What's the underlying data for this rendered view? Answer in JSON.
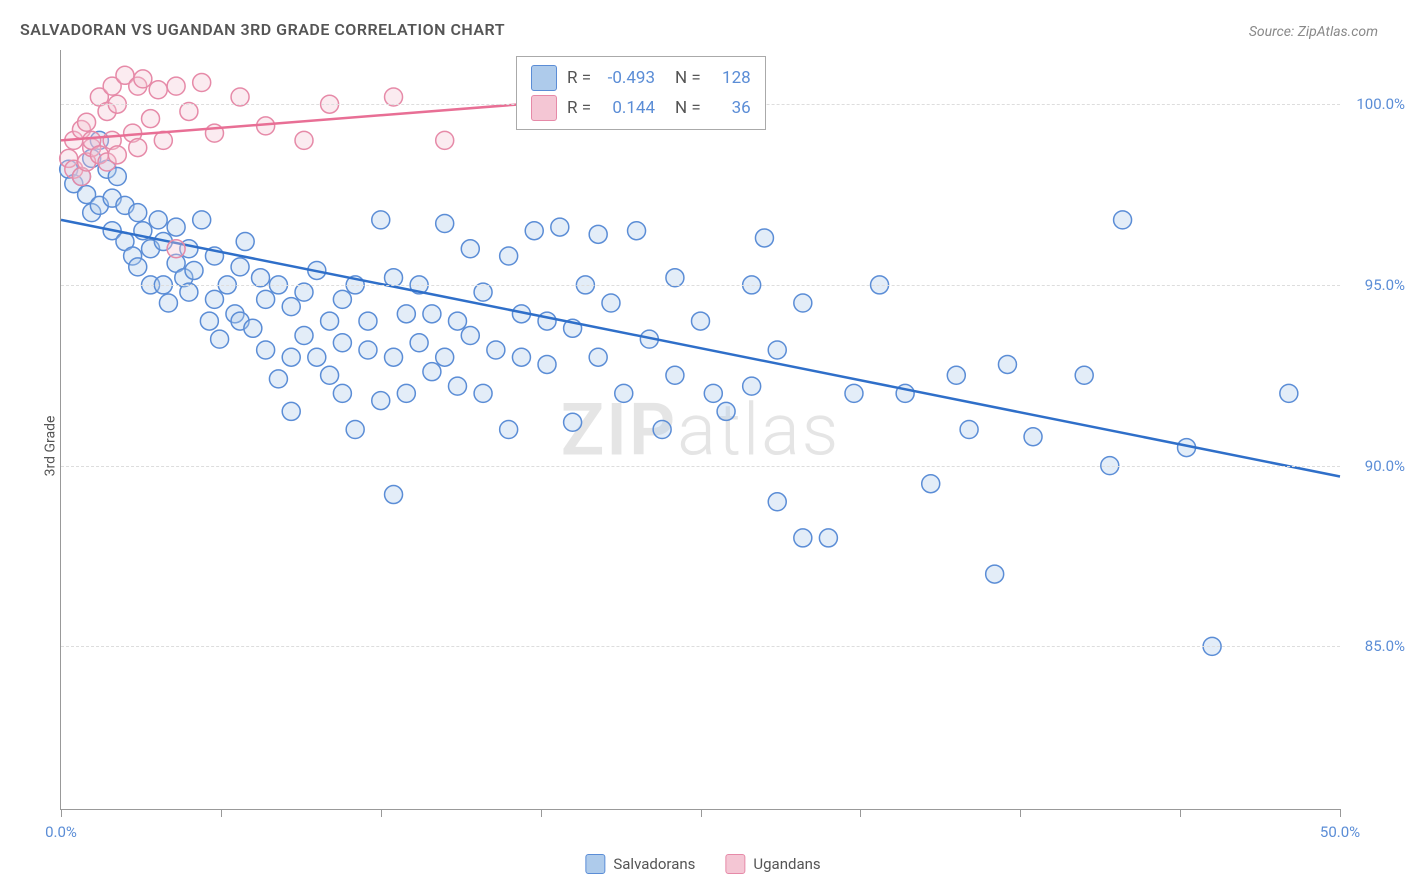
{
  "title": "SALVADORAN VS UGANDAN 3RD GRADE CORRELATION CHART",
  "source": "Source: ZipAtlas.com",
  "y_axis_label": "3rd Grade",
  "watermark": {
    "left": "ZIP",
    "right": "atlas"
  },
  "chart": {
    "type": "scatter",
    "xlim": [
      0,
      50
    ],
    "ylim": [
      80.5,
      101.5
    ],
    "x_tick_positions": [
      0,
      6.25,
      12.5,
      18.75,
      25,
      31.25,
      37.5,
      43.75,
      50
    ],
    "x_tick_labels": {
      "0": "0.0%",
      "50": "50.0%"
    },
    "y_gridlines": [
      85,
      90,
      95,
      100
    ],
    "y_tick_labels": {
      "85": "85.0%",
      "90": "90.0%",
      "95": "95.0%",
      "100": "100.0%"
    },
    "background_color": "#ffffff",
    "grid_color": "#dddddd",
    "axis_color": "#999999",
    "label_color": "#5b8dd6",
    "marker_radius": 9,
    "marker_fill_opacity": 0.35,
    "marker_stroke_width": 1.5,
    "trend_line_width": 2.5,
    "series": [
      {
        "name": "Salvadorans",
        "color_fill": "#aecbeb",
        "color_stroke": "#5b8dd6",
        "trend_color": "#2f6fc9",
        "R": "-0.493",
        "N": "128",
        "trend_line": {
          "x1": 0,
          "y1": 96.8,
          "x2": 50,
          "y2": 89.7
        },
        "points": [
          [
            0.3,
            98.2
          ],
          [
            0.5,
            97.8
          ],
          [
            0.8,
            98.0
          ],
          [
            1.0,
            97.5
          ],
          [
            1.2,
            97.0
          ],
          [
            1.2,
            98.5
          ],
          [
            1.5,
            99.0
          ],
          [
            1.5,
            97.2
          ],
          [
            1.8,
            98.2
          ],
          [
            2.0,
            97.4
          ],
          [
            2.0,
            96.5
          ],
          [
            2.2,
            98.0
          ],
          [
            2.5,
            96.2
          ],
          [
            2.5,
            97.2
          ],
          [
            2.8,
            95.8
          ],
          [
            3.0,
            97.0
          ],
          [
            3.0,
            95.5
          ],
          [
            3.2,
            96.5
          ],
          [
            3.5,
            96.0
          ],
          [
            3.5,
            95.0
          ],
          [
            3.8,
            96.8
          ],
          [
            4.0,
            95.0
          ],
          [
            4.0,
            96.2
          ],
          [
            4.2,
            94.5
          ],
          [
            4.5,
            96.6
          ],
          [
            4.5,
            95.6
          ],
          [
            4.8,
            95.2
          ],
          [
            5.0,
            94.8
          ],
          [
            5.0,
            96.0
          ],
          [
            5.2,
            95.4
          ],
          [
            5.5,
            96.8
          ],
          [
            5.8,
            94.0
          ],
          [
            6.0,
            95.8
          ],
          [
            6.0,
            94.6
          ],
          [
            6.2,
            93.5
          ],
          [
            6.5,
            95.0
          ],
          [
            6.8,
            94.2
          ],
          [
            7.0,
            95.5
          ],
          [
            7.0,
            94.0
          ],
          [
            7.2,
            96.2
          ],
          [
            7.5,
            93.8
          ],
          [
            7.8,
            95.2
          ],
          [
            8.0,
            94.6
          ],
          [
            8.0,
            93.2
          ],
          [
            8.5,
            95.0
          ],
          [
            8.5,
            92.4
          ],
          [
            9.0,
            94.4
          ],
          [
            9.0,
            93.0
          ],
          [
            9.0,
            91.5
          ],
          [
            9.5,
            94.8
          ],
          [
            9.5,
            93.6
          ],
          [
            10.0,
            95.4
          ],
          [
            10.0,
            93.0
          ],
          [
            10.5,
            94.0
          ],
          [
            10.5,
            92.5
          ],
          [
            11.0,
            94.6
          ],
          [
            11.0,
            93.4
          ],
          [
            11.0,
            92.0
          ],
          [
            11.5,
            95.0
          ],
          [
            11.5,
            91.0
          ],
          [
            12.0,
            94.0
          ],
          [
            12.0,
            93.2
          ],
          [
            12.5,
            96.8
          ],
          [
            12.5,
            91.8
          ],
          [
            13.0,
            93.0
          ],
          [
            13.0,
            95.2
          ],
          [
            13.0,
            89.2
          ],
          [
            13.5,
            94.2
          ],
          [
            13.5,
            92.0
          ],
          [
            14.0,
            93.4
          ],
          [
            14.0,
            95.0
          ],
          [
            14.5,
            94.2
          ],
          [
            14.5,
            92.6
          ],
          [
            15.0,
            96.7
          ],
          [
            15.0,
            93.0
          ],
          [
            15.5,
            94.0
          ],
          [
            15.5,
            92.2
          ],
          [
            16.0,
            96.0
          ],
          [
            16.0,
            93.6
          ],
          [
            16.5,
            94.8
          ],
          [
            16.5,
            92.0
          ],
          [
            17.0,
            93.2
          ],
          [
            17.5,
            95.8
          ],
          [
            17.5,
            91.0
          ],
          [
            18.0,
            94.2
          ],
          [
            18.0,
            93.0
          ],
          [
            18.5,
            96.5
          ],
          [
            19.0,
            92.8
          ],
          [
            19.0,
            94.0
          ],
          [
            19.5,
            96.6
          ],
          [
            20.0,
            93.8
          ],
          [
            20.0,
            91.2
          ],
          [
            20.5,
            95.0
          ],
          [
            21.0,
            96.4
          ],
          [
            21.0,
            93.0
          ],
          [
            21.5,
            94.5
          ],
          [
            22.0,
            92.0
          ],
          [
            22.5,
            96.5
          ],
          [
            23.0,
            93.5
          ],
          [
            23.5,
            91.0
          ],
          [
            24.0,
            95.2
          ],
          [
            24.0,
            92.5
          ],
          [
            25.0,
            94.0
          ],
          [
            25.5,
            92.0
          ],
          [
            26.0,
            91.5
          ],
          [
            27.0,
            95.0
          ],
          [
            27.0,
            92.2
          ],
          [
            27.5,
            96.3
          ],
          [
            28.0,
            93.2
          ],
          [
            28.0,
            89.0
          ],
          [
            29.0,
            94.5
          ],
          [
            29.0,
            88.0
          ],
          [
            30.0,
            88.0
          ],
          [
            31.0,
            92.0
          ],
          [
            32.0,
            95.0
          ],
          [
            33.0,
            92.0
          ],
          [
            34.0,
            89.5
          ],
          [
            35.0,
            92.5
          ],
          [
            35.5,
            91.0
          ],
          [
            36.5,
            87.0
          ],
          [
            37.0,
            92.8
          ],
          [
            38.0,
            90.8
          ],
          [
            40.0,
            92.5
          ],
          [
            41.0,
            90.0
          ],
          [
            41.5,
            96.8
          ],
          [
            44.0,
            90.5
          ],
          [
            45.0,
            85.0
          ],
          [
            48.0,
            92.0
          ]
        ]
      },
      {
        "name": "Ugandans",
        "color_fill": "#f4c6d4",
        "color_stroke": "#e68aa8",
        "trend_color": "#e86f95",
        "R": "0.144",
        "N": "36",
        "trend_line": {
          "x1": 0,
          "y1": 99.0,
          "x2": 18,
          "y2": 100.0
        },
        "points": [
          [
            0.3,
            98.5
          ],
          [
            0.5,
            98.2
          ],
          [
            0.5,
            99.0
          ],
          [
            0.8,
            98.0
          ],
          [
            0.8,
            99.3
          ],
          [
            1.0,
            99.5
          ],
          [
            1.0,
            98.4
          ],
          [
            1.2,
            98.8
          ],
          [
            1.2,
            99.0
          ],
          [
            1.5,
            100.2
          ],
          [
            1.5,
            98.6
          ],
          [
            1.8,
            99.8
          ],
          [
            1.8,
            98.4
          ],
          [
            2.0,
            100.5
          ],
          [
            2.0,
            99.0
          ],
          [
            2.2,
            100.0
          ],
          [
            2.2,
            98.6
          ],
          [
            2.5,
            100.8
          ],
          [
            2.8,
            99.2
          ],
          [
            3.0,
            100.5
          ],
          [
            3.0,
            98.8
          ],
          [
            3.2,
            100.7
          ],
          [
            3.5,
            99.6
          ],
          [
            3.8,
            100.4
          ],
          [
            4.0,
            99.0
          ],
          [
            4.5,
            100.5
          ],
          [
            4.5,
            96.0
          ],
          [
            5.0,
            99.8
          ],
          [
            5.5,
            100.6
          ],
          [
            6.0,
            99.2
          ],
          [
            7.0,
            100.2
          ],
          [
            8.0,
            99.4
          ],
          [
            9.5,
            99.0
          ],
          [
            10.5,
            100.0
          ],
          [
            13.0,
            100.2
          ],
          [
            15.0,
            99.0
          ]
        ]
      }
    ]
  },
  "legend": {
    "series1_label": "Salvadorans",
    "series2_label": "Ugandans"
  },
  "stats_box": {
    "rows": [
      {
        "swatch_fill": "#aecbeb",
        "swatch_stroke": "#5b8dd6",
        "R_label": "R =",
        "R_value": "-0.493",
        "N_label": "N =",
        "N_value": "128"
      },
      {
        "swatch_fill": "#f4c6d4",
        "swatch_stroke": "#e68aa8",
        "R_label": "R =",
        "R_value": "0.144",
        "N_label": "N =",
        "N_value": "36"
      }
    ]
  }
}
